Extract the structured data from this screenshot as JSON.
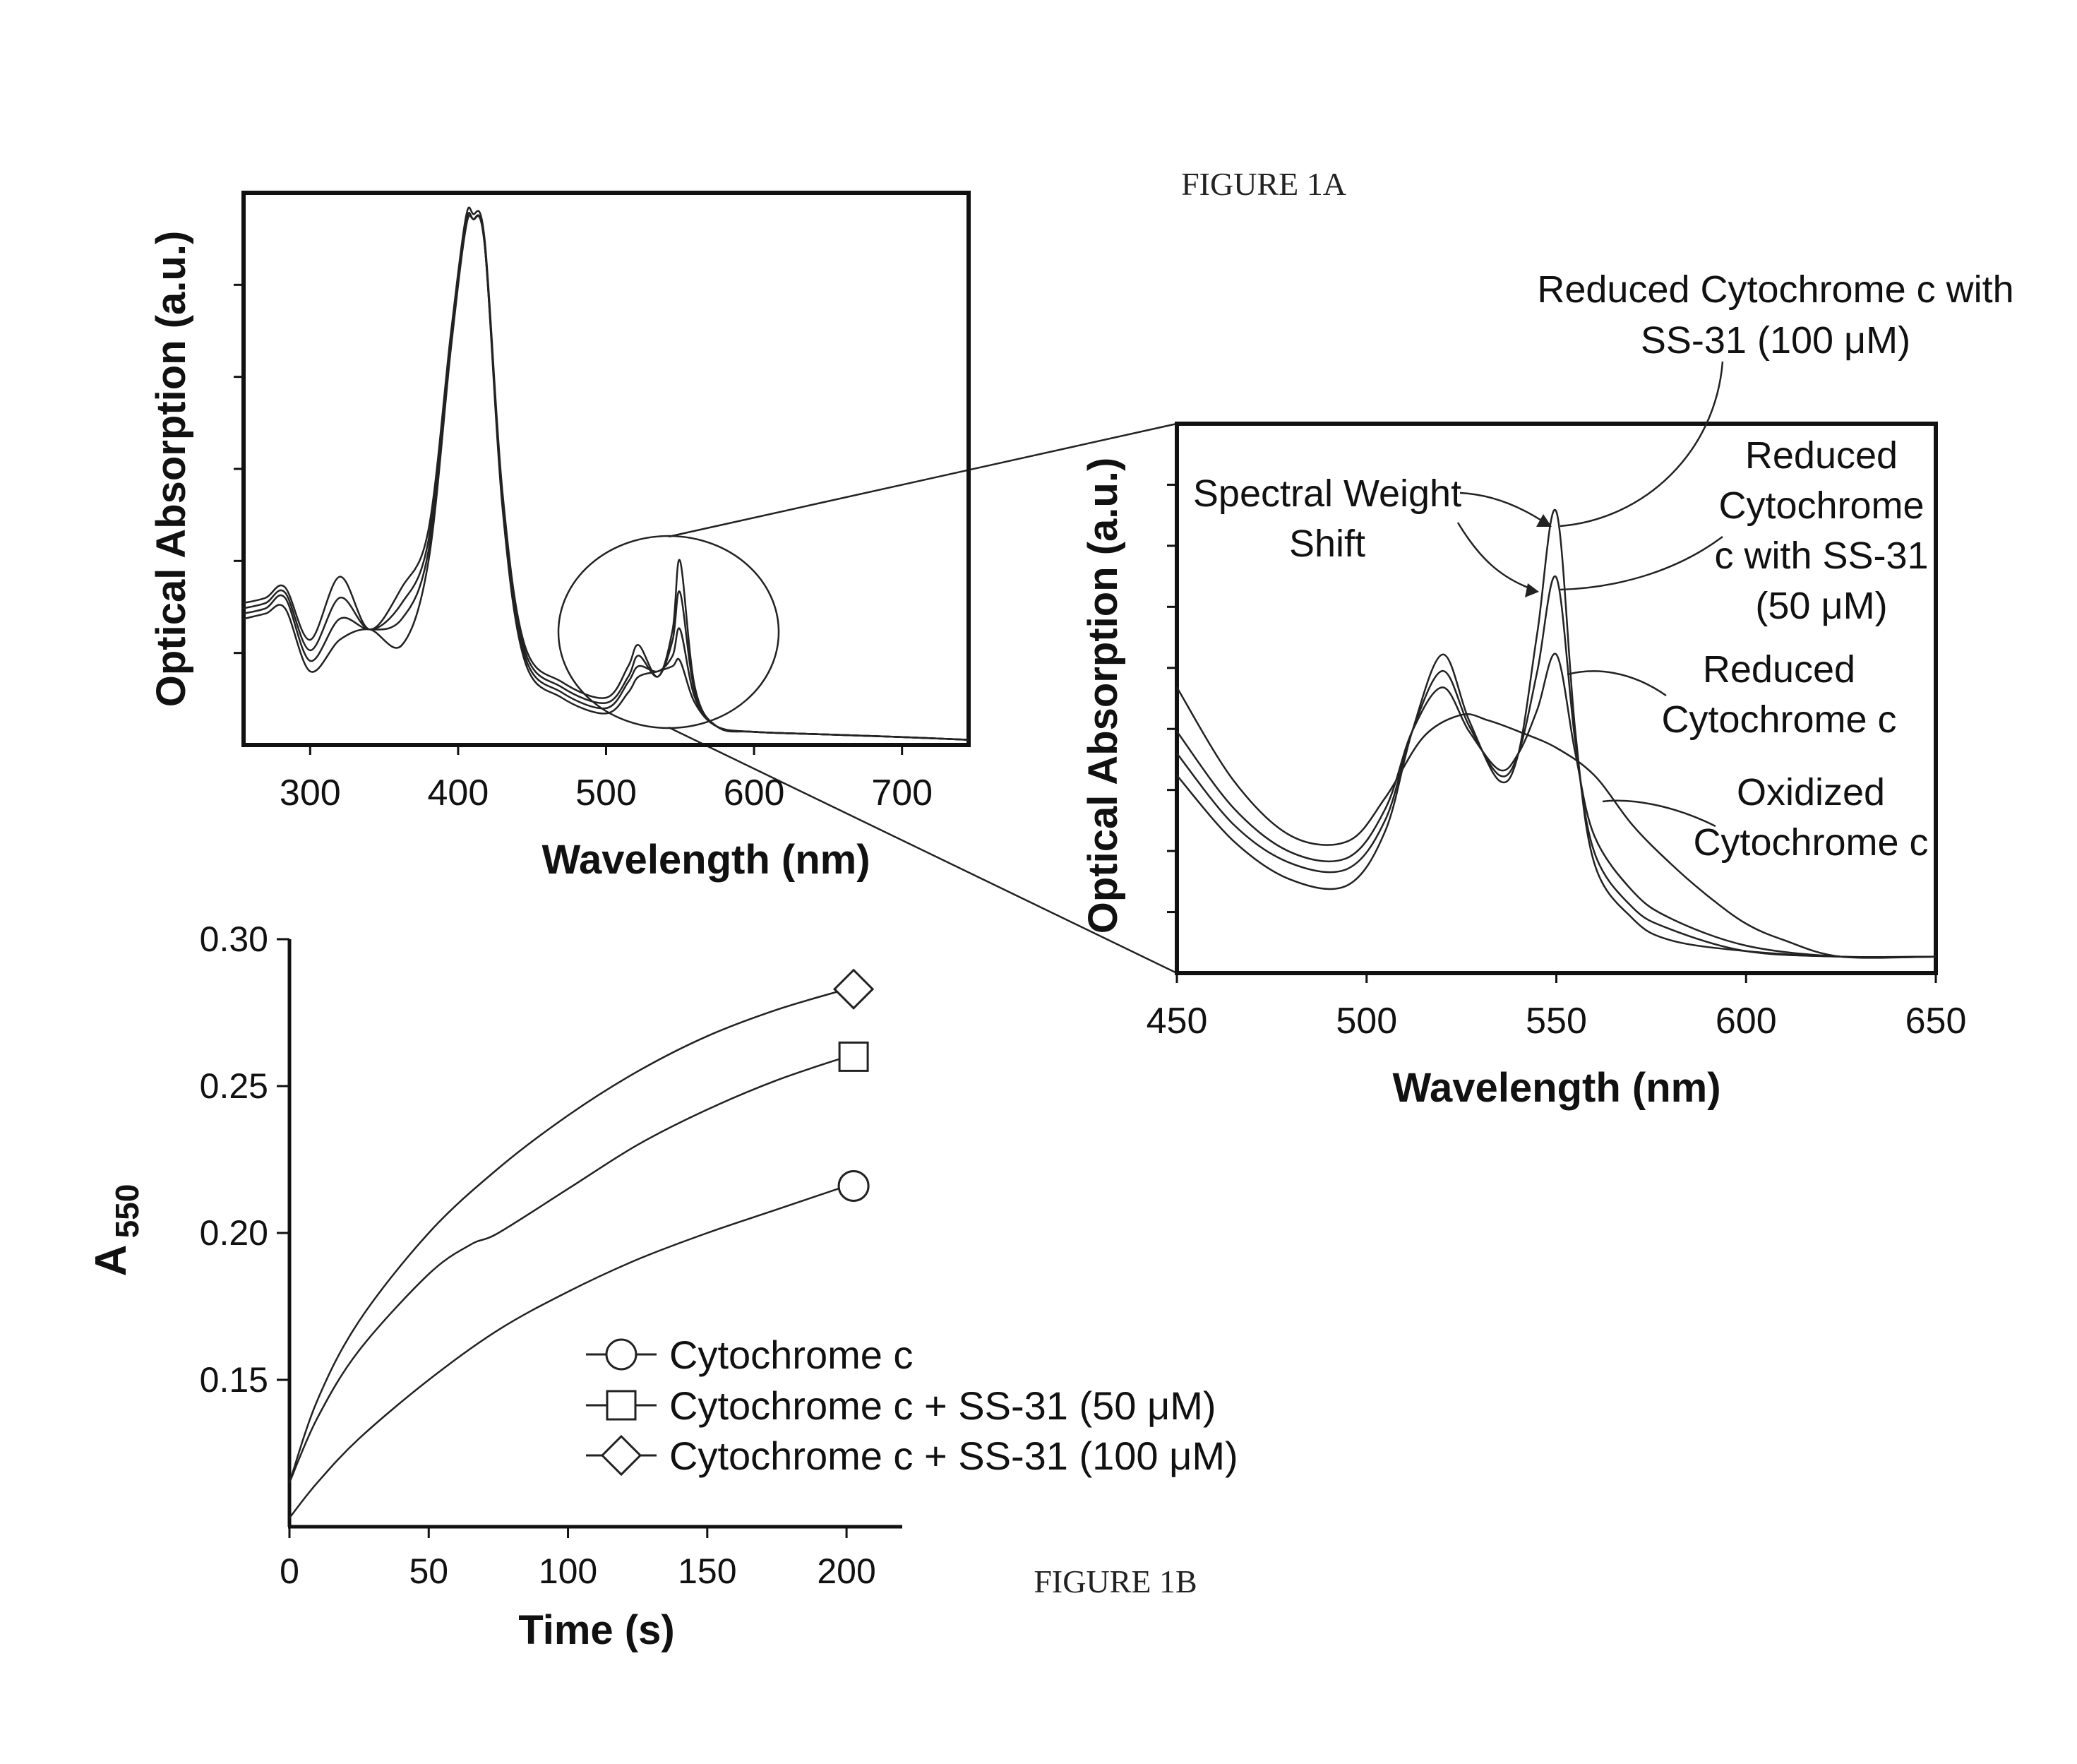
{
  "figure_labels": {
    "fig1a": "FIGURE 1A",
    "fig1b": "FIGURE 1B"
  },
  "chart_data": [
    {
      "id": "spectrum-full",
      "type": "line",
      "title": "",
      "xlabel": "Wavelength (nm)",
      "ylabel": "Optical Absorption (a.u.)",
      "xlim": [
        255,
        745
      ],
      "ylim": [
        0,
        1.05
      ],
      "xticks": [
        300,
        400,
        500,
        600,
        700
      ],
      "yticks_count": 5,
      "series": [
        {
          "x": [
            255,
            270,
            283,
            300,
            320,
            340,
            362,
            380,
            395,
            405,
            410,
            418,
            430,
            445,
            470,
            500,
            515,
            522,
            535,
            545,
            550,
            560,
            575,
            600,
            650,
            700,
            745
          ],
          "y": [
            0.24,
            0.25,
            0.26,
            0.14,
            0.2,
            0.22,
            0.19,
            0.35,
            0.75,
            0.98,
            1.0,
            0.95,
            0.45,
            0.16,
            0.09,
            0.06,
            0.1,
            0.13,
            0.14,
            0.15,
            0.16,
            0.08,
            0.035,
            0.025,
            0.02,
            0.015,
            0.01
          ]
        },
        {
          "x": [
            255,
            270,
            283,
            300,
            320,
            340,
            362,
            380,
            395,
            405,
            410,
            418,
            430,
            445,
            470,
            500,
            515,
            522,
            535,
            545,
            550,
            560,
            575,
            600,
            650,
            700,
            745
          ],
          "y": [
            0.25,
            0.26,
            0.28,
            0.16,
            0.24,
            0.22,
            0.24,
            0.37,
            0.76,
            0.98,
            1.0,
            0.95,
            0.46,
            0.17,
            0.1,
            0.07,
            0.12,
            0.15,
            0.14,
            0.17,
            0.22,
            0.09,
            0.035,
            0.025,
            0.02,
            0.015,
            0.01
          ]
        },
        {
          "x": [
            255,
            270,
            283,
            300,
            320,
            340,
            362,
            380,
            395,
            405,
            410,
            418,
            430,
            445,
            470,
            500,
            515,
            522,
            535,
            545,
            550,
            560,
            575,
            600,
            650,
            700,
            745
          ],
          "y": [
            0.26,
            0.27,
            0.29,
            0.18,
            0.28,
            0.22,
            0.27,
            0.39,
            0.77,
            0.99,
            1.0,
            0.95,
            0.47,
            0.18,
            0.11,
            0.08,
            0.13,
            0.17,
            0.13,
            0.2,
            0.29,
            0.1,
            0.035,
            0.025,
            0.02,
            0.015,
            0.01
          ]
        },
        {
          "x": [
            255,
            270,
            283,
            300,
            320,
            340,
            362,
            380,
            395,
            405,
            410,
            418,
            430,
            445,
            470,
            500,
            515,
            522,
            535,
            545,
            550,
            560,
            575,
            600,
            650,
            700,
            745
          ],
          "y": [
            0.27,
            0.28,
            0.3,
            0.2,
            0.32,
            0.22,
            0.3,
            0.41,
            0.78,
            1.0,
            1.01,
            0.96,
            0.48,
            0.19,
            0.12,
            0.09,
            0.15,
            0.19,
            0.13,
            0.22,
            0.35,
            0.11,
            0.035,
            0.025,
            0.02,
            0.015,
            0.01
          ]
        }
      ]
    },
    {
      "id": "spectrum-zoom",
      "type": "line",
      "title": "",
      "xlabel": "Wavelength (nm)",
      "ylabel": "Optical Absorption (a.u.)",
      "xlim": [
        450,
        650
      ],
      "ylim": [
        0,
        1
      ],
      "xticks": [
        450,
        500,
        550,
        600,
        650
      ],
      "yticks_count": 8,
      "annotations": {
        "spectral_weight_shift": [
          "Spectral Weight",
          "Shift"
        ],
        "reduced_100": [
          "Reduced Cytochrome c with",
          "SS-31 (100 μM)"
        ],
        "reduced_50": [
          "Reduced",
          "Cytochrome",
          "c with SS-31",
          "(50 μM)"
        ],
        "reduced": [
          "Reduced",
          "Cytochrome c"
        ],
        "oxidized": [
          "Oxidized",
          "Cytochrome c"
        ]
      },
      "series": [
        {
          "name": "Oxidized Cytochrome c",
          "x": [
            450,
            465,
            480,
            495,
            505,
            515,
            525,
            532,
            540,
            550,
            560,
            570,
            580,
            590,
            600,
            610,
            625,
            650
          ],
          "y": [
            0.52,
            0.35,
            0.25,
            0.24,
            0.32,
            0.43,
            0.47,
            0.46,
            0.44,
            0.41,
            0.36,
            0.27,
            0.2,
            0.14,
            0.09,
            0.06,
            0.03,
            0.03
          ]
        },
        {
          "name": "Reduced Cytochrome c",
          "x": [
            450,
            465,
            480,
            495,
            505,
            512,
            520,
            527,
            535,
            540,
            545,
            550,
            555,
            560,
            570,
            580,
            600,
            625,
            650
          ],
          "y": [
            0.44,
            0.3,
            0.22,
            0.21,
            0.3,
            0.44,
            0.52,
            0.44,
            0.37,
            0.4,
            0.48,
            0.58,
            0.4,
            0.25,
            0.15,
            0.1,
            0.05,
            0.03,
            0.03
          ]
        },
        {
          "name": "Reduced Cytochrome c with SS-31 (50 μM)",
          "x": [
            450,
            465,
            480,
            495,
            505,
            512,
            520,
            527,
            535,
            540,
            545,
            550,
            555,
            560,
            570,
            580,
            600,
            625,
            650
          ],
          "y": [
            0.4,
            0.27,
            0.2,
            0.19,
            0.28,
            0.44,
            0.55,
            0.45,
            0.36,
            0.4,
            0.55,
            0.72,
            0.42,
            0.22,
            0.12,
            0.08,
            0.04,
            0.03,
            0.03
          ]
        },
        {
          "name": "Reduced Cytochrome c with SS-31 (100 μM)",
          "x": [
            450,
            465,
            480,
            495,
            505,
            512,
            520,
            527,
            535,
            540,
            545,
            550,
            555,
            560,
            570,
            580,
            600,
            625,
            650
          ],
          "y": [
            0.36,
            0.24,
            0.17,
            0.16,
            0.26,
            0.44,
            0.58,
            0.46,
            0.35,
            0.4,
            0.62,
            0.84,
            0.44,
            0.2,
            0.1,
            0.06,
            0.04,
            0.03,
            0.03
          ]
        }
      ]
    },
    {
      "id": "kinetics",
      "type": "line",
      "title": "",
      "xlabel": "Time (s)",
      "ylabel": "A550",
      "ylabel_main": "A",
      "ylabel_sub": "550",
      "xlim": [
        0,
        220
      ],
      "ylim": [
        0.1,
        0.3
      ],
      "xticks": [
        0,
        50,
        100,
        150,
        200
      ],
      "yticks": [
        0.15,
        0.2,
        0.25,
        0.3
      ],
      "ytick_labels": [
        "0.15",
        "0.20",
        "0.25",
        "0.30"
      ],
      "legend_position": "bottom-right",
      "series": [
        {
          "name": "Cytochrome c",
          "marker": "circle",
          "x": [
            0,
            10,
            25,
            50,
            75,
            100,
            125,
            150,
            175,
            200
          ],
          "y": [
            0.103,
            0.115,
            0.13,
            0.15,
            0.167,
            0.18,
            0.191,
            0.2,
            0.208,
            0.216
          ]
        },
        {
          "name": "Cytochrome c + SS-31 (50 μM)",
          "marker": "square",
          "x": [
            0,
            10,
            25,
            50,
            65,
            75,
            100,
            125,
            150,
            175,
            200
          ],
          "y": [
            0.115,
            0.137,
            0.16,
            0.186,
            0.196,
            0.2,
            0.215,
            0.23,
            0.242,
            0.252,
            0.26
          ]
        },
        {
          "name": "Cytochrome c + SS-31 (100 μM)",
          "marker": "diamond",
          "x": [
            0,
            10,
            25,
            50,
            75,
            100,
            125,
            150,
            175,
            200
          ],
          "y": [
            0.115,
            0.143,
            0.17,
            0.2,
            0.222,
            0.24,
            0.255,
            0.267,
            0.276,
            0.283
          ]
        }
      ]
    }
  ]
}
